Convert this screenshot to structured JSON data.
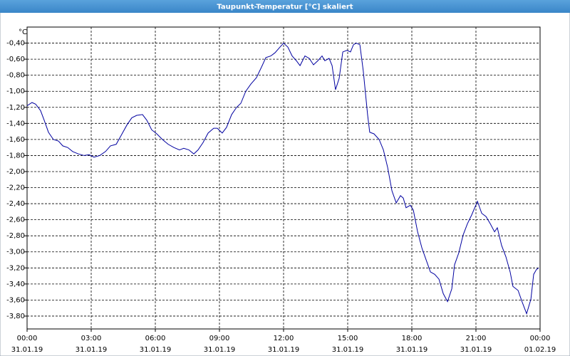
{
  "chart_data": {
    "type": "line",
    "title": "Taupunkt-Temperatur [°C] skaliert",
    "y_label": "°C",
    "x": [
      0,
      0.23,
      0.4,
      0.63,
      0.8,
      1.0,
      1.23,
      1.47,
      1.67,
      1.9,
      2.13,
      2.4,
      2.67,
      2.9,
      3.13,
      3.4,
      3.67,
      3.9,
      4.17,
      4.4,
      4.67,
      4.9,
      5.13,
      5.4,
      5.6,
      5.83,
      6.07,
      6.33,
      6.6,
      6.87,
      7.13,
      7.33,
      7.57,
      7.8,
      8.0,
      8.23,
      8.47,
      8.73,
      8.9,
      9.13,
      9.33,
      9.57,
      9.8,
      10.0,
      10.23,
      10.47,
      10.73,
      11.0,
      11.17,
      11.4,
      11.6,
      11.83,
      12.0,
      12.2,
      12.4,
      12.6,
      12.77,
      13.0,
      13.2,
      13.4,
      13.6,
      13.8,
      13.93,
      14.13,
      14.27,
      14.43,
      14.6,
      14.77,
      14.97,
      15.13,
      15.27,
      15.4,
      15.57,
      15.73,
      15.93,
      16.03,
      16.23,
      16.47,
      16.67,
      16.87,
      17.07,
      17.27,
      17.47,
      17.6,
      17.73,
      17.93,
      18.07,
      18.27,
      18.47,
      18.67,
      18.87,
      19.07,
      19.27,
      19.47,
      19.67,
      19.87,
      20.0,
      20.2,
      20.4,
      20.6,
      20.8,
      21.07,
      21.27,
      21.47,
      21.67,
      21.87,
      22.0,
      22.2,
      22.4,
      22.6,
      22.73,
      22.97,
      23.17,
      23.37,
      23.57,
      23.7,
      23.83,
      23.93
    ],
    "series": [
      {
        "name": "Taupunkt-Temperatur",
        "color": "#0000a0",
        "values": [
          -1.18,
          -1.14,
          -1.16,
          -1.24,
          -1.36,
          -1.51,
          -1.6,
          -1.62,
          -1.68,
          -1.7,
          -1.75,
          -1.78,
          -1.8,
          -1.79,
          -1.82,
          -1.8,
          -1.75,
          -1.68,
          -1.66,
          -1.55,
          -1.42,
          -1.33,
          -1.3,
          -1.29,
          -1.36,
          -1.48,
          -1.53,
          -1.6,
          -1.66,
          -1.7,
          -1.73,
          -1.71,
          -1.73,
          -1.78,
          -1.73,
          -1.64,
          -1.52,
          -1.46,
          -1.46,
          -1.52,
          -1.45,
          -1.29,
          -1.2,
          -1.15,
          -1.0,
          -0.91,
          -0.83,
          -0.68,
          -0.58,
          -0.56,
          -0.52,
          -0.45,
          -0.4,
          -0.45,
          -0.56,
          -0.62,
          -0.68,
          -0.56,
          -0.59,
          -0.67,
          -0.62,
          -0.56,
          -0.62,
          -0.59,
          -0.68,
          -0.98,
          -0.84,
          -0.51,
          -0.49,
          -0.51,
          -0.42,
          -0.4,
          -0.42,
          -0.75,
          -1.29,
          -1.51,
          -1.53,
          -1.6,
          -1.73,
          -1.95,
          -2.24,
          -2.39,
          -2.3,
          -2.33,
          -2.45,
          -2.42,
          -2.48,
          -2.75,
          -2.95,
          -3.1,
          -3.25,
          -3.28,
          -3.34,
          -3.52,
          -3.62,
          -3.46,
          -3.16,
          -3.01,
          -2.79,
          -2.65,
          -2.54,
          -2.37,
          -2.52,
          -2.56,
          -2.65,
          -2.75,
          -2.7,
          -2.92,
          -3.06,
          -3.25,
          -3.43,
          -3.48,
          -3.63,
          -3.77,
          -3.59,
          -3.28,
          -3.22,
          -3.2
        ]
      }
    ],
    "xlim": [
      0,
      24
    ],
    "xticks": [
      {
        "value": 0,
        "label": "00:00"
      },
      {
        "value": 3,
        "label": "03:00"
      },
      {
        "value": 6,
        "label": "06:00"
      },
      {
        "value": 9,
        "label": "09:00"
      },
      {
        "value": 12,
        "label": "12:00"
      },
      {
        "value": 15,
        "label": "15:00"
      },
      {
        "value": 18,
        "label": "18:00"
      },
      {
        "value": 21,
        "label": "21:00"
      },
      {
        "value": 24,
        "label": "00:00"
      }
    ],
    "xtick_dates": [
      "31.01.19",
      "31.01.19",
      "31.01.19",
      "31.01.19",
      "31.01.19",
      "31.01.19",
      "31.01.19",
      "31.01.19",
      "01.02.19"
    ],
    "ylim": [
      -3.96,
      -0.2
    ],
    "yticks": [
      {
        "value": -0.4,
        "label": "-0,40"
      },
      {
        "value": -0.6,
        "label": "-0,60"
      },
      {
        "value": -0.8,
        "label": "-0,80"
      },
      {
        "value": -1.0,
        "label": "-1,00"
      },
      {
        "value": -1.2,
        "label": "-1,20"
      },
      {
        "value": -1.4,
        "label": "-1,40"
      },
      {
        "value": -1.6,
        "label": "-1,60"
      },
      {
        "value": -1.8,
        "label": "-1,80"
      },
      {
        "value": -2.0,
        "label": "-2,00"
      },
      {
        "value": -2.2,
        "label": "-2,20"
      },
      {
        "value": -2.4,
        "label": "-2,40"
      },
      {
        "value": -2.6,
        "label": "-2,60"
      },
      {
        "value": -2.8,
        "label": "-2,80"
      },
      {
        "value": -3.0,
        "label": "-3,00"
      },
      {
        "value": -3.2,
        "label": "-3,20"
      },
      {
        "value": -3.4,
        "label": "-3,40"
      },
      {
        "value": -3.6,
        "label": "-3,60"
      },
      {
        "value": -3.8,
        "label": "-3,80"
      }
    ],
    "grid": true
  }
}
